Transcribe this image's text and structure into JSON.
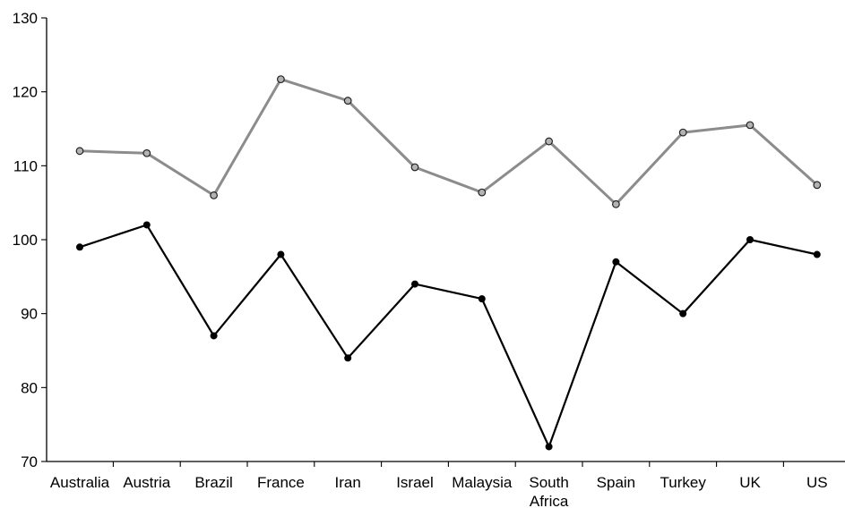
{
  "chart_data": {
    "type": "line",
    "title": "",
    "xlabel": "",
    "ylabel": "",
    "ylim": [
      70,
      130
    ],
    "yticks": [
      70,
      80,
      90,
      100,
      110,
      120,
      130
    ],
    "grid": false,
    "legend": "none",
    "categories": [
      "Australia",
      "Austria",
      "Brazil",
      "France",
      "Iran",
      "Israel",
      "Malaysia",
      "South Africa",
      "Spain",
      "Turkey",
      "UK",
      "US"
    ],
    "series": [
      {
        "color": "#8c8c8c",
        "marker": "open-circle",
        "values": [
          112,
          111.7,
          106,
          121.7,
          118.8,
          109.8,
          106.4,
          113.3,
          104.8,
          114.5,
          115.5,
          107.4
        ]
      },
      {
        "color": "#000000",
        "marker": "filled-circle",
        "values": [
          99,
          102,
          87,
          98,
          84,
          94,
          92,
          72,
          97,
          90,
          100,
          98
        ]
      }
    ]
  }
}
